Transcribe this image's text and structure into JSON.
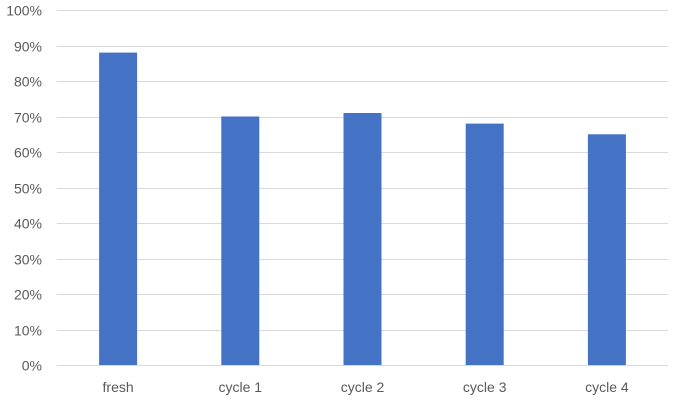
{
  "chart_data": {
    "type": "bar",
    "title": "",
    "xlabel": "",
    "ylabel": "",
    "categories": [
      "fresh",
      "cycle 1",
      "cycle 2",
      "cycle 3",
      "cycle 4"
    ],
    "series": [
      {
        "values": [
          88,
          70,
          71,
          68,
          65
        ]
      }
    ],
    "ylim": [
      0,
      100
    ],
    "yticks": [
      0,
      10,
      20,
      30,
      40,
      50,
      60,
      70,
      80,
      90,
      100
    ],
    "ytick_labels": [
      "0%",
      "10%",
      "20%",
      "30%",
      "40%",
      "50%",
      "60%",
      "70%",
      "80%",
      "90%",
      "100%"
    ],
    "grid": true,
    "legend": "none",
    "bar_color": "#4472C4"
  }
}
